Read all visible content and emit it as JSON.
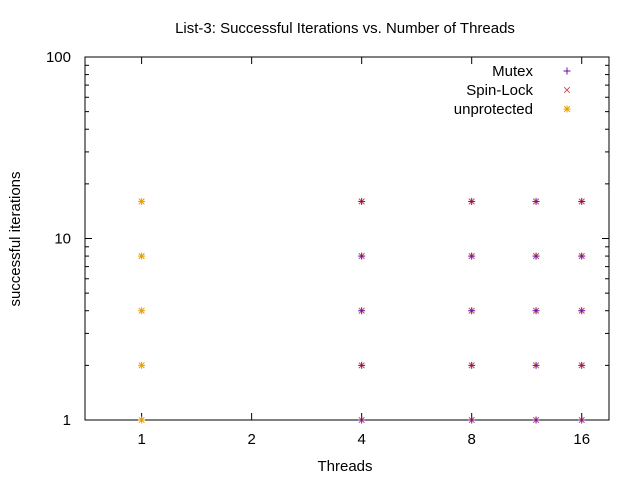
{
  "chart_data": {
    "type": "scatter",
    "title": "List-3: Successful Iterations vs. Number of Threads",
    "xlabel": "Threads",
    "ylabel": "successful iterations",
    "x_scale": "log2",
    "y_scale": "log10",
    "xlim": [
      0.7,
      19
    ],
    "ylim": [
      1,
      100
    ],
    "x_ticks": [
      {
        "value": 1,
        "label": "1"
      },
      {
        "value": 2,
        "label": "2"
      },
      {
        "value": 4,
        "label": "4"
      },
      {
        "value": 8,
        "label": "8"
      },
      {
        "value": 16,
        "label": "16"
      }
    ],
    "y_ticks": [
      {
        "value": 1,
        "label": "1"
      },
      {
        "value": 10,
        "label": "10"
      },
      {
        "value": 100,
        "label": "100"
      }
    ],
    "legend_position": "top-right",
    "grid": false,
    "series": [
      {
        "name": "Mutex",
        "marker": "plus",
        "color": "#6a0dad",
        "points": [
          {
            "x": 4,
            "y": 1
          },
          {
            "x": 4,
            "y": 2
          },
          {
            "x": 4,
            "y": 4
          },
          {
            "x": 4,
            "y": 8
          },
          {
            "x": 4,
            "y": 16
          },
          {
            "x": 8,
            "y": 1
          },
          {
            "x": 8,
            "y": 2
          },
          {
            "x": 8,
            "y": 4
          },
          {
            "x": 8,
            "y": 8
          },
          {
            "x": 8,
            "y": 16
          },
          {
            "x": 12,
            "y": 1
          },
          {
            "x": 12,
            "y": 2
          },
          {
            "x": 12,
            "y": 4
          },
          {
            "x": 12,
            "y": 8
          },
          {
            "x": 12,
            "y": 16
          },
          {
            "x": 16,
            "y": 1
          },
          {
            "x": 16,
            "y": 2
          },
          {
            "x": 16,
            "y": 4
          },
          {
            "x": 16,
            "y": 8
          },
          {
            "x": 16,
            "y": 16
          }
        ]
      },
      {
        "name": "Spin-Lock",
        "marker": "cross",
        "color": "#c0504d",
        "points": [
          {
            "x": 4,
            "y": 1
          },
          {
            "x": 4,
            "y": 2
          },
          {
            "x": 4,
            "y": 4
          },
          {
            "x": 4,
            "y": 8
          },
          {
            "x": 4,
            "y": 16
          },
          {
            "x": 8,
            "y": 1
          },
          {
            "x": 8,
            "y": 2
          },
          {
            "x": 8,
            "y": 4
          },
          {
            "x": 8,
            "y": 8
          },
          {
            "x": 8,
            "y": 16
          },
          {
            "x": 12,
            "y": 1
          },
          {
            "x": 12,
            "y": 2
          },
          {
            "x": 12,
            "y": 4
          },
          {
            "x": 12,
            "y": 8
          },
          {
            "x": 12,
            "y": 16
          },
          {
            "x": 16,
            "y": 1
          },
          {
            "x": 16,
            "y": 2
          },
          {
            "x": 16,
            "y": 4
          },
          {
            "x": 16,
            "y": 8
          },
          {
            "x": 16,
            "y": 16
          }
        ]
      },
      {
        "name": "unprotected",
        "marker": "star",
        "color": "#e6a000",
        "points": [
          {
            "x": 1,
            "y": 1
          },
          {
            "x": 1,
            "y": 2
          },
          {
            "x": 1,
            "y": 4
          },
          {
            "x": 1,
            "y": 8
          },
          {
            "x": 1,
            "y": 16
          }
        ]
      }
    ]
  }
}
